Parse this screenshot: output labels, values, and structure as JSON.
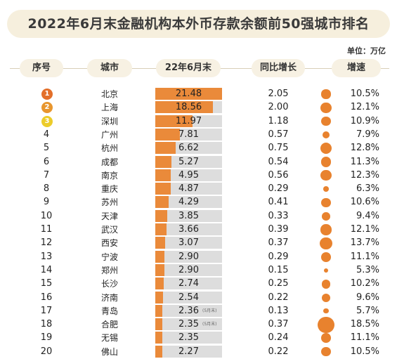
{
  "title": "2022年6月末金融机构本外币存款余额前50强城市排名",
  "unit": "单位：万亿",
  "headers": {
    "rank": "序号",
    "city": "城市",
    "balance": "22年6月末",
    "yoy": "同比增长",
    "growth": "增速"
  },
  "colors": {
    "bar": "#ea8a3a",
    "track": "#dddddd",
    "dot": "#e8822e",
    "gold": "#e36f2a",
    "silver": "#e8962e",
    "bronze": "#eccc2a"
  },
  "chart_data": {
    "type": "table",
    "columns": [
      "序号",
      "城市",
      "22年6月末",
      "同比增长",
      "增速"
    ],
    "rows": [
      {
        "rank": "1",
        "city": "北京",
        "balance": 21.48,
        "balance_text": "21.48",
        "yoy": "2.05",
        "growth": 10.5,
        "growth_text": "10.5%"
      },
      {
        "rank": "2",
        "city": "上海",
        "balance": 18.56,
        "balance_text": "18.56",
        "yoy": "2.00",
        "growth": 12.1,
        "growth_text": "12.1%"
      },
      {
        "rank": "3",
        "city": "深圳",
        "balance": 11.97,
        "balance_text": "11.97",
        "yoy": "1.18",
        "growth": 10.9,
        "growth_text": "10.9%"
      },
      {
        "rank": "4",
        "city": "广州",
        "balance": 7.81,
        "balance_text": "7.81",
        "yoy": "0.57",
        "growth": 7.9,
        "growth_text": "7.9%"
      },
      {
        "rank": "5",
        "city": "杭州",
        "balance": 6.62,
        "balance_text": "6.62",
        "yoy": "0.75",
        "growth": 12.8,
        "growth_text": "12.8%"
      },
      {
        "rank": "6",
        "city": "成都",
        "balance": 5.27,
        "balance_text": "5.27",
        "yoy": "0.54",
        "growth": 11.3,
        "growth_text": "11.3%"
      },
      {
        "rank": "7",
        "city": "南京",
        "balance": 4.95,
        "balance_text": "4.95",
        "yoy": "0.56",
        "growth": 12.3,
        "growth_text": "12.3%"
      },
      {
        "rank": "8",
        "city": "重庆",
        "balance": 4.87,
        "balance_text": "4.87",
        "yoy": "0.29",
        "growth": 6.3,
        "growth_text": "6.3%"
      },
      {
        "rank": "9",
        "city": "苏州",
        "balance": 4.29,
        "balance_text": "4.29",
        "yoy": "0.41",
        "growth": 10.6,
        "growth_text": "10.6%"
      },
      {
        "rank": "10",
        "city": "天津",
        "balance": 3.85,
        "balance_text": "3.85",
        "yoy": "0.33",
        "growth": 9.4,
        "growth_text": "9.4%"
      },
      {
        "rank": "11",
        "city": "武汉",
        "balance": 3.66,
        "balance_text": "3.66",
        "yoy": "0.39",
        "growth": 12.1,
        "growth_text": "12.1%"
      },
      {
        "rank": "12",
        "city": "西安",
        "balance": 3.07,
        "balance_text": "3.07",
        "yoy": "0.37",
        "growth": 13.7,
        "growth_text": "13.7%"
      },
      {
        "rank": "13",
        "city": "宁波",
        "balance": 2.9,
        "balance_text": "2.90",
        "yoy": "0.29",
        "growth": 11.1,
        "growth_text": "11.1%"
      },
      {
        "rank": "14",
        "city": "郑州",
        "balance": 2.9,
        "balance_text": "2.90",
        "yoy": "0.15",
        "growth": 5.3,
        "growth_text": "5.3%"
      },
      {
        "rank": "15",
        "city": "长沙",
        "balance": 2.74,
        "balance_text": "2.74",
        "yoy": "0.25",
        "growth": 10.2,
        "growth_text": "10.2%"
      },
      {
        "rank": "16",
        "city": "济南",
        "balance": 2.54,
        "balance_text": "2.54",
        "yoy": "0.22",
        "growth": 9.6,
        "growth_text": "9.6%"
      },
      {
        "rank": "17",
        "city": "青岛",
        "balance": 2.36,
        "balance_text": "2.36",
        "note": "(5月末)",
        "yoy": "0.13",
        "growth": 5.7,
        "growth_text": "5.7%"
      },
      {
        "rank": "18",
        "city": "合肥",
        "balance": 2.35,
        "balance_text": "2.35",
        "note": "(5月末)",
        "yoy": "0.37",
        "growth": 18.5,
        "growth_text": "18.5%"
      },
      {
        "rank": "19",
        "city": "无锡",
        "balance": 2.35,
        "balance_text": "2.35",
        "yoy": "0.24",
        "growth": 11.1,
        "growth_text": "11.1%"
      },
      {
        "rank": "20",
        "city": "佛山",
        "balance": 2.27,
        "balance_text": "2.27",
        "yoy": "0.22",
        "growth": 10.5,
        "growth_text": "10.5%"
      }
    ]
  }
}
